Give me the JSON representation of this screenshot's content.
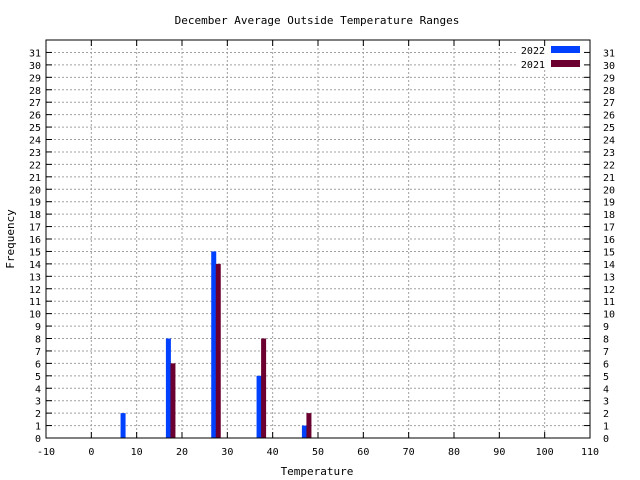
{
  "chart_data": {
    "type": "bar",
    "title": "December Average Outside Temperature Ranges",
    "xlabel": "Temperature",
    "ylabel": "Frequency",
    "xlim": [
      -10,
      110
    ],
    "ylim": [
      0,
      32
    ],
    "x_ticks": [
      -10,
      0,
      10,
      20,
      30,
      40,
      50,
      60,
      70,
      80,
      90,
      100,
      110
    ],
    "y_ticks": [
      0,
      1,
      2,
      3,
      4,
      5,
      6,
      7,
      8,
      9,
      10,
      11,
      12,
      13,
      14,
      15,
      16,
      17,
      18,
      19,
      20,
      21,
      22,
      23,
      24,
      25,
      26,
      27,
      28,
      29,
      30,
      31
    ],
    "y_ticks_mirrored_right": true,
    "grid": true,
    "legend_position": "top-right",
    "series": [
      {
        "name": "2022",
        "color": "#0040ff",
        "points": [
          {
            "x": 7,
            "y": 2
          },
          {
            "x": 17,
            "y": 8
          },
          {
            "x": 27,
            "y": 15
          },
          {
            "x": 37,
            "y": 5
          },
          {
            "x": 47,
            "y": 1
          }
        ]
      },
      {
        "name": "2021",
        "color": "#6b0030",
        "points": [
          {
            "x": 18,
            "y": 6
          },
          {
            "x": 28,
            "y": 14
          },
          {
            "x": 38,
            "y": 8
          },
          {
            "x": 48,
            "y": 2
          }
        ]
      }
    ]
  }
}
